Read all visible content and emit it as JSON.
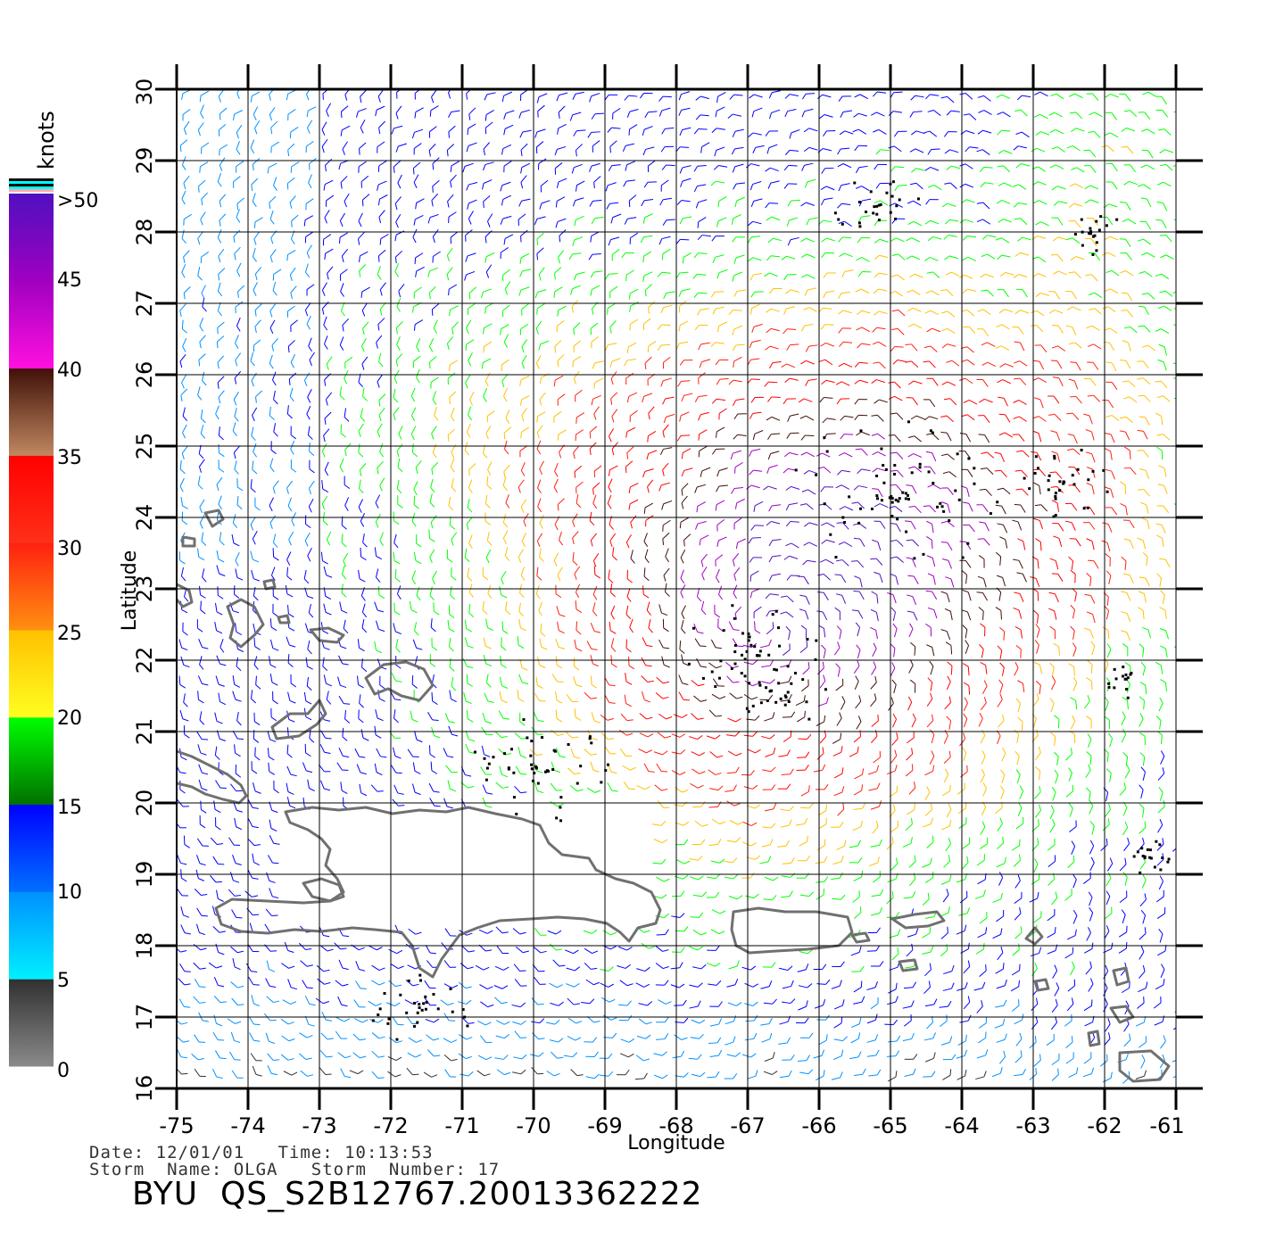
{
  "colorbar": {
    "unit": "knots",
    "tick_labels": [
      "0",
      "5",
      "10",
      "15",
      "20",
      "25",
      "30",
      "35",
      "40",
      "45",
      ">50"
    ],
    "bands": [
      {
        "from": 0,
        "to": 5,
        "top": "#303030",
        "bottom": "#8a8a8a"
      },
      {
        "from": 5,
        "to": 10,
        "top": "#0090ff",
        "bottom": "#00f0ff"
      },
      {
        "from": 10,
        "to": 15,
        "top": "#0000ff",
        "bottom": "#0070ff"
      },
      {
        "from": 15,
        "to": 20,
        "top": "#00ff00",
        "bottom": "#007000"
      },
      {
        "from": 20,
        "to": 25,
        "top": "#ffc000",
        "bottom": "#ffff20"
      },
      {
        "from": 25,
        "to": 30,
        "top": "#ff2010",
        "bottom": "#ff9010"
      },
      {
        "from": 30,
        "to": 35,
        "top": "#ff0000",
        "bottom": "#ff3018"
      },
      {
        "from": 35,
        "to": 40,
        "top": "#401008",
        "bottom": "#c08860"
      },
      {
        "from": 40,
        "to": 45,
        "top": "#a000c0",
        "bottom": "#ff10e0"
      },
      {
        "from": 45,
        "to": 50,
        "top": "#5010c0",
        "bottom": "#a000c0"
      }
    ],
    "overflow_stripe_colors": [
      "#ffaaaa",
      "#00ffff",
      "#000000",
      "#00ffff",
      "#000000"
    ]
  },
  "map": {
    "lon_range": [
      -75,
      -61
    ],
    "lat_range": [
      16,
      30
    ],
    "x_tick_labels": [
      "-75",
      "-74",
      "-73",
      "-72",
      "-71",
      "-70",
      "-69",
      "-68",
      "-67",
      "-66",
      "-65",
      "-64",
      "-63",
      "-62",
      "-61"
    ],
    "y_tick_labels": [
      "16",
      "17",
      "18",
      "19",
      "20",
      "21",
      "22",
      "23",
      "24",
      "25",
      "26",
      "27",
      "28",
      "29",
      "30"
    ],
    "xlabel": "Longitude",
    "ylabel": "Latitude",
    "grid": true,
    "coastline_color": "#707070",
    "rain_flag_color": "#000000"
  },
  "meta": {
    "date_line": "Date: 12/01/01   Time: 10:13:53",
    "storm_line": "Storm  Name: OLGA   Storm  Number: 17",
    "title": "BYU  QS_S2B12767.20013362222"
  }
}
